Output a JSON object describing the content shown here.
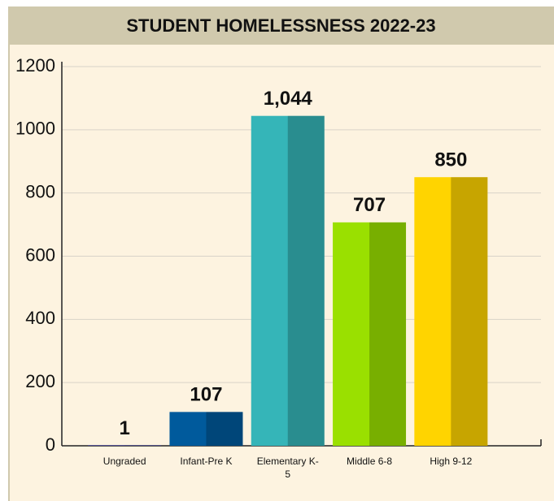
{
  "chart_data": {
    "type": "bar",
    "title": "STUDENT HOMELESSNESS 2022-23",
    "categories": [
      "Ungraded",
      "Infant-Pre K",
      "Elementary K-5",
      "Middle 6-8",
      "High 9-12"
    ],
    "values": [
      1,
      107,
      1044,
      707,
      850
    ],
    "value_labels": [
      "1",
      "107",
      "1,044",
      "707",
      "850"
    ],
    "colors": [
      "#1a1ad0",
      "#005a9c",
      "#35b5b8",
      "#9ae000",
      "#ffd400"
    ],
    "ylim": [
      0,
      1200
    ],
    "yticks": [
      0,
      200,
      400,
      600,
      800,
      1000,
      1200
    ],
    "grid": true
  }
}
